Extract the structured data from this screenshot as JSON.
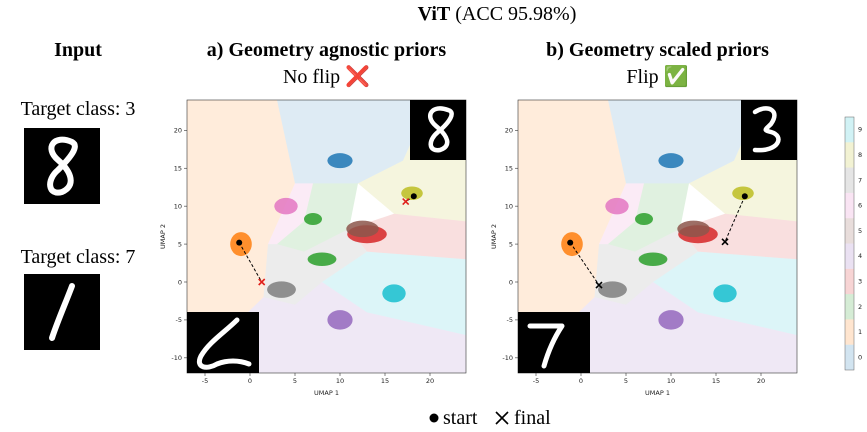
{
  "header": {
    "title_bold": "ViT",
    "title_rest": "(ACC 95.98%)"
  },
  "input": {
    "title": "Input",
    "rows": [
      {
        "label": "Target class: 3"
      },
      {
        "label": "Target class: 7"
      }
    ]
  },
  "panels": [
    {
      "title": "a) Geometry agnostic priors",
      "subtitle": "No flip",
      "mark": "❌",
      "xlabel": "UMAP 1",
      "ylabel": "UMAP 2",
      "xlim": [
        -7,
        24
      ],
      "ylim": [
        -12,
        24
      ],
      "xticks": [
        -5,
        0,
        5,
        10,
        15,
        20
      ],
      "yticks": [
        -10,
        -5,
        0,
        5,
        10,
        15,
        20
      ],
      "trajectories": [
        {
          "start": [
            -1.2,
            5.2
          ],
          "final": [
            1.3,
            0
          ]
        },
        {
          "start": [
            18.2,
            11.3
          ],
          "final": [
            17.3,
            10.6
          ]
        }
      ],
      "final_color": "#e0201b"
    },
    {
      "title": "b) Geometry scaled priors",
      "subtitle": "Flip",
      "mark": "✅",
      "xlabel": "UMAP 1",
      "ylabel": "UMAP 2",
      "xlim": [
        -7,
        24
      ],
      "ylim": [
        -12,
        24
      ],
      "xticks": [
        -5,
        0,
        5,
        10,
        15,
        20
      ],
      "yticks": [
        -10,
        -5,
        0,
        5,
        10,
        15,
        20
      ],
      "trajectories": [
        {
          "start": [
            -1.2,
            5.2
          ],
          "final": [
            2,
            -0.4
          ]
        },
        {
          "start": [
            18.2,
            11.3
          ],
          "final": [
            16,
            5.3
          ]
        }
      ],
      "final_color": "#000000"
    }
  ],
  "colorbar": {
    "ticks": [
      0,
      1,
      2,
      3,
      4,
      5,
      6,
      7,
      8,
      9
    ]
  },
  "legend": {
    "start": "start",
    "final": "final"
  }
}
